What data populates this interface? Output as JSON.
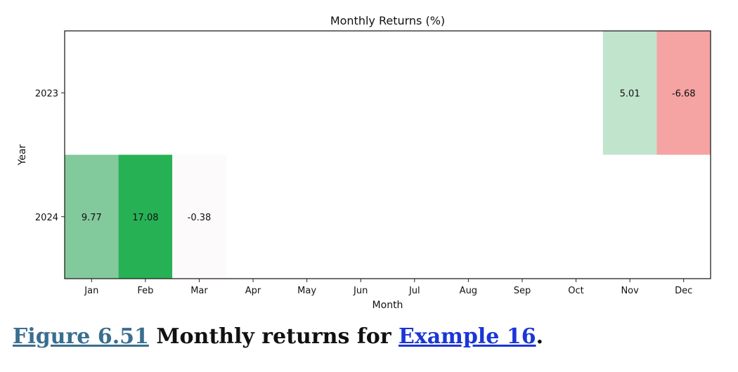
{
  "chart_data": {
    "type": "heatmap",
    "title": "Monthly Returns (%)",
    "xlabel": "Month",
    "ylabel": "Year",
    "x_categories": [
      "Jan",
      "Feb",
      "Mar",
      "Apr",
      "May",
      "Jun",
      "Jul",
      "Aug",
      "Sep",
      "Oct",
      "Nov",
      "Dec"
    ],
    "y_categories": [
      "2023",
      "2024"
    ],
    "cells": [
      {
        "year": "2023",
        "month": "Nov",
        "value": 5.01,
        "label": "5.01",
        "color": "#c1e4cd"
      },
      {
        "year": "2023",
        "month": "Dec",
        "value": -6.68,
        "label": "-6.68",
        "color": "#f5a3a3"
      },
      {
        "year": "2024",
        "month": "Jan",
        "value": 9.77,
        "label": "9.77",
        "color": "#82c99b"
      },
      {
        "year": "2024",
        "month": "Feb",
        "value": 17.08,
        "label": "17.08",
        "color": "#27b155"
      },
      {
        "year": "2024",
        "month": "Mar",
        "value": -0.38,
        "label": "-0.38",
        "color": "#fdfafb"
      }
    ],
    "colormap": "red-white-green diverging",
    "grid": false
  },
  "caption": {
    "figure_label": "Figure 6.51",
    "text": " Monthly returns for ",
    "example_link": "Example 16",
    "end": "."
  }
}
